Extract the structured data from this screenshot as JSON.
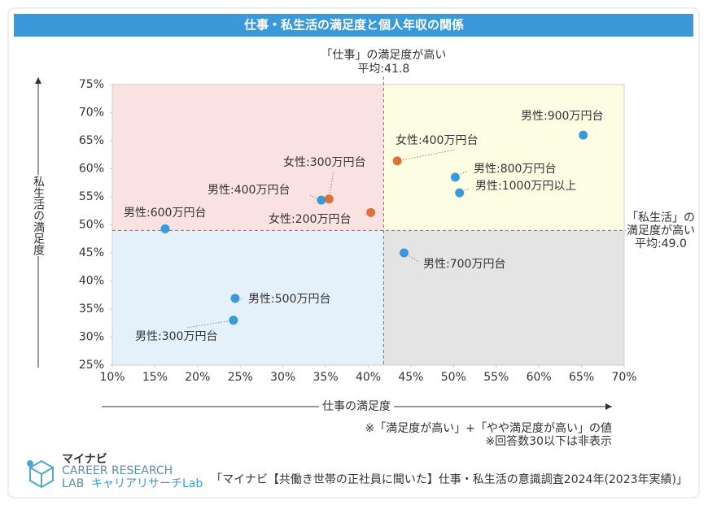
{
  "chart_data": {
    "type": "scatter",
    "title": "仕事・私生活の満足度と個人年収の関係",
    "x_label": "仕事の満足度",
    "y_label": "私生活の満足度",
    "xlim": [
      10,
      70
    ],
    "ylim": [
      25,
      75
    ],
    "xticks": [
      {
        "value": 10,
        "label": "10%"
      },
      {
        "value": 15,
        "label": "15%"
      },
      {
        "value": 20,
        "label": "20%"
      },
      {
        "value": 25,
        "label": "25%"
      },
      {
        "value": 30,
        "label": "30%"
      },
      {
        "value": 35,
        "label": "35%"
      },
      {
        "value": 40,
        "label": "40%"
      },
      {
        "value": 45,
        "label": "45%"
      },
      {
        "value": 50,
        "label": "50%"
      },
      {
        "value": 55,
        "label": "55%"
      },
      {
        "value": 60,
        "label": "60%"
      },
      {
        "value": 65,
        "label": "65%"
      },
      {
        "value": 70,
        "label": "70%"
      }
    ],
    "yticks": [
      {
        "value": 25,
        "label": "25%"
      },
      {
        "value": 30,
        "label": "30%"
      },
      {
        "value": 35,
        "label": "35%"
      },
      {
        "value": 40,
        "label": "40%"
      },
      {
        "value": 45,
        "label": "45%"
      },
      {
        "value": 50,
        "label": "50%"
      },
      {
        "value": 55,
        "label": "55%"
      },
      {
        "value": 60,
        "label": "60%"
      },
      {
        "value": 65,
        "label": "65%"
      },
      {
        "value": 70,
        "label": "70%"
      },
      {
        "value": 75,
        "label": "75%"
      }
    ],
    "x_average": {
      "value": 41.8,
      "label": "平均:41.8"
    },
    "x_average_note": "「仕事」の満足度が高い",
    "y_average": {
      "value": 49.0,
      "label": "平均:49.0"
    },
    "y_average_note": [
      "「私生活」の",
      "満足度が高い"
    ],
    "points": [
      {
        "label": "男性:900万円台",
        "x": 65.2,
        "y": 66.0,
        "color": "#3a9ad9"
      },
      {
        "label": "女性:400万円台",
        "x": 43.4,
        "y": 61.4,
        "color": "#e0703a"
      },
      {
        "label": "男性:800万円台",
        "x": 50.2,
        "y": 58.5,
        "color": "#3a9ad9"
      },
      {
        "label": "男性:1000万円以上",
        "x": 50.7,
        "y": 55.7,
        "color": "#3a9ad9"
      },
      {
        "label": "女性:300万円台",
        "x": 35.4,
        "y": 54.6,
        "color": "#e0703a"
      },
      {
        "label": "男性:400万円台",
        "x": 34.5,
        "y": 54.4,
        "color": "#3a9ad9"
      },
      {
        "label": "女性:200万円台",
        "x": 40.3,
        "y": 52.2,
        "color": "#e0703a"
      },
      {
        "label": "男性:600万円台",
        "x": 16.2,
        "y": 49.3,
        "color": "#3a9ad9"
      },
      {
        "label": "男性:700万円台",
        "x": 44.2,
        "y": 45.0,
        "color": "#3a9ad9"
      },
      {
        "label": "男性:500万円台",
        "x": 24.4,
        "y": 36.9,
        "color": "#3a9ad9"
      },
      {
        "label": "男性:300万円台",
        "x": 24.2,
        "y": 33.0,
        "color": "#3a9ad9"
      }
    ],
    "notes": [
      "※「満足度が高い」+「やや満足度が高い」の値",
      "※回答数30以下は非表示"
    ],
    "source": "「マイナビ【共働き世帯の正社員に聞いた】仕事・私生活の意識調査2024年(2023年実績)」",
    "logo": {
      "brand": "マイナビ",
      "line1": "CAREER RESEARCH",
      "line2": "LAB",
      "sub": "キャリアリサーチLab"
    }
  }
}
